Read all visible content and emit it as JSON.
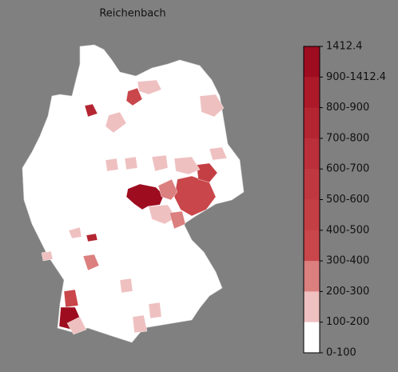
{
  "title": "Reichenbach",
  "legend": {
    "labels": [
      "1412.4",
      "900-1412.4",
      "800-900",
      "700-800",
      "600-700",
      "500-600",
      "400-500",
      "300-400",
      "200-300",
      "100-200",
      "0-100"
    ],
    "colors": [
      "#9e0c20",
      "#ac1a2a",
      "#b42532",
      "#ba2f3a",
      "#bf3840",
      "#c43f44",
      "#c9464a",
      "#dc7f7f",
      "#efc0c0",
      "#ffffff"
    ]
  }
}
